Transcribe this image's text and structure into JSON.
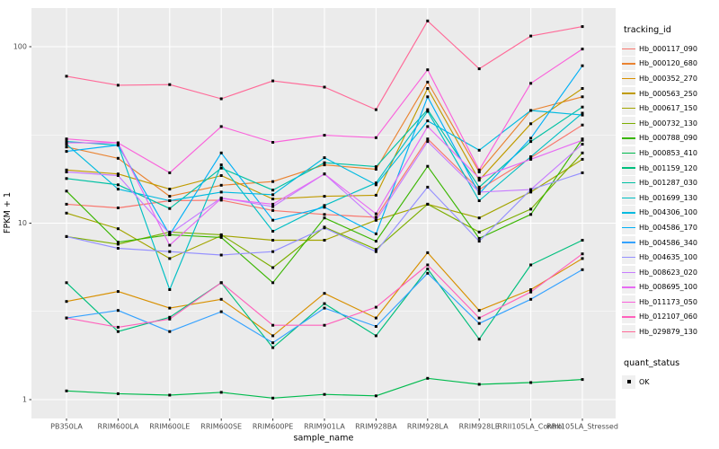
{
  "figure": {
    "y_axis_title": "FPKM + 1",
    "x_axis_title": "sample_name"
  },
  "legend": {
    "tracking_title": "tracking_id",
    "quant_title": "quant_status",
    "quant_items": [
      {
        "label": "OK"
      }
    ]
  },
  "chart_data": {
    "type": "line",
    "title": "",
    "xlabel": "sample_name",
    "ylabel": "FPKM + 1",
    "y_scale": "log10",
    "ylim": [
      1,
      140
    ],
    "grid": "on",
    "legend_position": "right",
    "panel_bg": "#EBEBEB",
    "gridline_color": "#FFFFFF",
    "tick_text_color": "#4D4D4D",
    "point_color": "#000000",
    "y_ticks": [
      {
        "label": "100",
        "value": 100
      },
      {
        "label": "10",
        "value": 10
      },
      {
        "label": "1",
        "value": 1
      }
    ],
    "y_minor_ticks": [
      31.623,
      3.1623
    ],
    "samples": [
      "PB350LA",
      "RRIM600LA",
      "RRIM600LE",
      "RRIM600SE",
      "RRIM600PE",
      "RRIM901LA",
      "RRIM928BA",
      "RRIM928LA",
      "RRIM928LE",
      "RRII105LA_Control",
      "RRII105LA_Stressed"
    ],
    "series": [
      {
        "name": "Hb_000117_090",
        "color": "#F8766D",
        "values": [
          12.8,
          12.2,
          13.4,
          13.5,
          11.8,
          11.2,
          10.8,
          30,
          15.5,
          23.5,
          36
        ]
      },
      {
        "name": "Hb_000120_680",
        "color": "#EA8331",
        "values": [
          27,
          23.3,
          14.2,
          16.4,
          17.2,
          21.4,
          20.2,
          63,
          19.5,
          43.5,
          52
        ]
      },
      {
        "name": "Hb_000352_270",
        "color": "#D89000",
        "values": [
          3.6,
          4.1,
          3.3,
          3.7,
          2.3,
          4.0,
          2.9,
          6.8,
          3.2,
          4.2,
          6.3
        ]
      },
      {
        "name": "Hb_000563_250",
        "color": "#C09B00",
        "values": [
          20,
          19,
          15.6,
          18.6,
          13.7,
          14.2,
          14.4,
          58,
          17.5,
          36.6,
          58
        ]
      },
      {
        "name": "Hb_000617_150",
        "color": "#A3A500",
        "values": [
          11.4,
          9.3,
          6.3,
          8.5,
          8.0,
          8.0,
          10.4,
          12.8,
          10.7,
          15,
          23
        ]
      },
      {
        "name": "Hb_000732_130",
        "color": "#7CAE00",
        "values": [
          8.4,
          7.6,
          8.9,
          8.6,
          5.6,
          9.5,
          7.1,
          12.8,
          8.9,
          12,
          25
        ]
      },
      {
        "name": "Hb_000788_090",
        "color": "#39B600",
        "values": [
          15.2,
          7.8,
          8.6,
          8.3,
          4.6,
          10.7,
          7.9,
          21,
          8.2,
          11.2,
          30
        ]
      },
      {
        "name": "Hb_000853_410",
        "color": "#00BB4E",
        "values": [
          1.12,
          1.08,
          1.06,
          1.1,
          1.02,
          1.07,
          1.05,
          1.32,
          1.22,
          1.25,
          1.3
        ]
      },
      {
        "name": "Hb_001159_120",
        "color": "#00BF7D",
        "values": [
          4.6,
          2.43,
          2.93,
          4.6,
          1.97,
          3.5,
          2.3,
          5.5,
          2.2,
          5.8,
          8.0
        ]
      },
      {
        "name": "Hb_001287_030",
        "color": "#00C1A3",
        "values": [
          17.9,
          16.5,
          12.1,
          20.5,
          15.4,
          22,
          20.9,
          44,
          16,
          29,
          45.5
        ]
      },
      {
        "name": "Hb_001699_130",
        "color": "#00BFC4",
        "values": [
          29,
          27.7,
          4.2,
          21.4,
          9.0,
          12.6,
          16.9,
          43,
          13.4,
          23.8,
          42
        ]
      },
      {
        "name": "Hb_004306_100",
        "color": "#00BAE0",
        "values": [
          28,
          15.6,
          13.4,
          15.0,
          14.5,
          23.5,
          16.5,
          38,
          25.9,
          43.5,
          41
        ]
      },
      {
        "name": "Hb_004586_170",
        "color": "#00B0F6",
        "values": [
          25.5,
          27.7,
          8.6,
          25,
          10.4,
          12.3,
          8.7,
          52,
          14.7,
          30.3,
          78
        ]
      },
      {
        "name": "Hb_004586_340",
        "color": "#35A2FF",
        "values": [
          2.9,
          3.2,
          2.43,
          3.15,
          2.1,
          3.3,
          2.6,
          5.2,
          2.7,
          3.7,
          5.45
        ]
      },
      {
        "name": "Hb_004635_100",
        "color": "#9590FF",
        "values": [
          8.4,
          7.2,
          6.9,
          6.6,
          6.9,
          9.4,
          6.9,
          16,
          7.9,
          15.5,
          19.3
        ]
      },
      {
        "name": "Hb_008623_020",
        "color": "#C77CFF",
        "values": [
          19.5,
          18.6,
          8.7,
          13.9,
          12.4,
          19,
          10.4,
          29,
          15,
          15.5,
          28
        ]
      },
      {
        "name": "Hb_008695_100",
        "color": "#E76BF3",
        "values": [
          28.5,
          28.5,
          7.5,
          13.8,
          12.8,
          19,
          11.3,
          35.3,
          18,
          23,
          29.5
        ]
      },
      {
        "name": "Hb_011173_050",
        "color": "#FA62DB",
        "values": [
          30,
          28.5,
          19.3,
          35.3,
          28.7,
          31.5,
          30.5,
          74,
          20,
          62,
          97
        ]
      },
      {
        "name": "Hb_012107_060",
        "color": "#FF62BC",
        "values": [
          2.9,
          2.57,
          2.86,
          4.6,
          2.64,
          2.64,
          3.34,
          5.8,
          2.9,
          4.07,
          6.7
        ]
      },
      {
        "name": "Hb_029879_130",
        "color": "#FF6A98",
        "values": [
          68,
          60.5,
          61,
          50.7,
          64,
          59,
          44,
          140,
          75,
          115,
          130
        ]
      }
    ]
  }
}
